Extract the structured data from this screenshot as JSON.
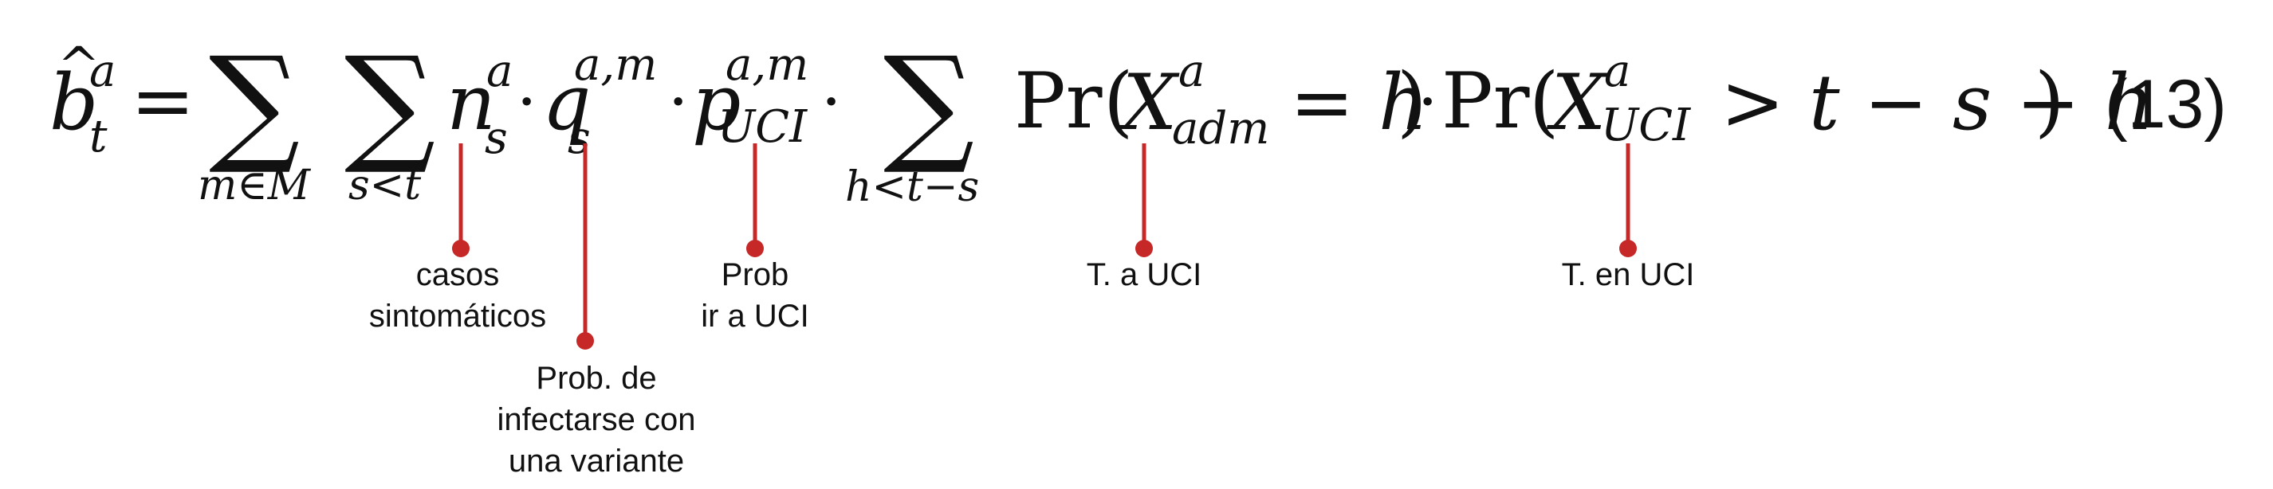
{
  "equation": {
    "lhs": "b",
    "lhs_hat": "^",
    "lhs_sup": "a",
    "lhs_sub": "t",
    "equals": "=",
    "sum_symbol": "∑",
    "sum1_sub": "m∈M",
    "sum2_sub": "s<t",
    "n": "n",
    "n_sup": "a",
    "n_sub": "s",
    "dot": "·",
    "q": "q",
    "q_sup": "a,m",
    "q_sub": "s",
    "p": "p",
    "p_sup": "a,m",
    "p_sub": "UCI",
    "sum3_sub": "h<t−s",
    "pr": "Pr",
    "lparen": "(",
    "rparen": ")",
    "X": "X",
    "x1_sup": "a",
    "x1_sub": "adm",
    "eq_h": "= h",
    "x2_sup": "a",
    "x2_sub": "UCI",
    "gt_expr": "> t − s − h",
    "number": "(13)"
  },
  "annotations": {
    "casos": [
      "casos",
      "sintomáticos"
    ],
    "variante": [
      "Prob. de",
      "infectarse con",
      "una variante"
    ],
    "prob_uci": [
      "Prob",
      "ir a UCI"
    ],
    "t_a_uci": [
      "T. a UCI"
    ],
    "t_en_uci": [
      "T. en UCI"
    ]
  },
  "colors": {
    "leader": "#c62828",
    "text": "#111111"
  }
}
